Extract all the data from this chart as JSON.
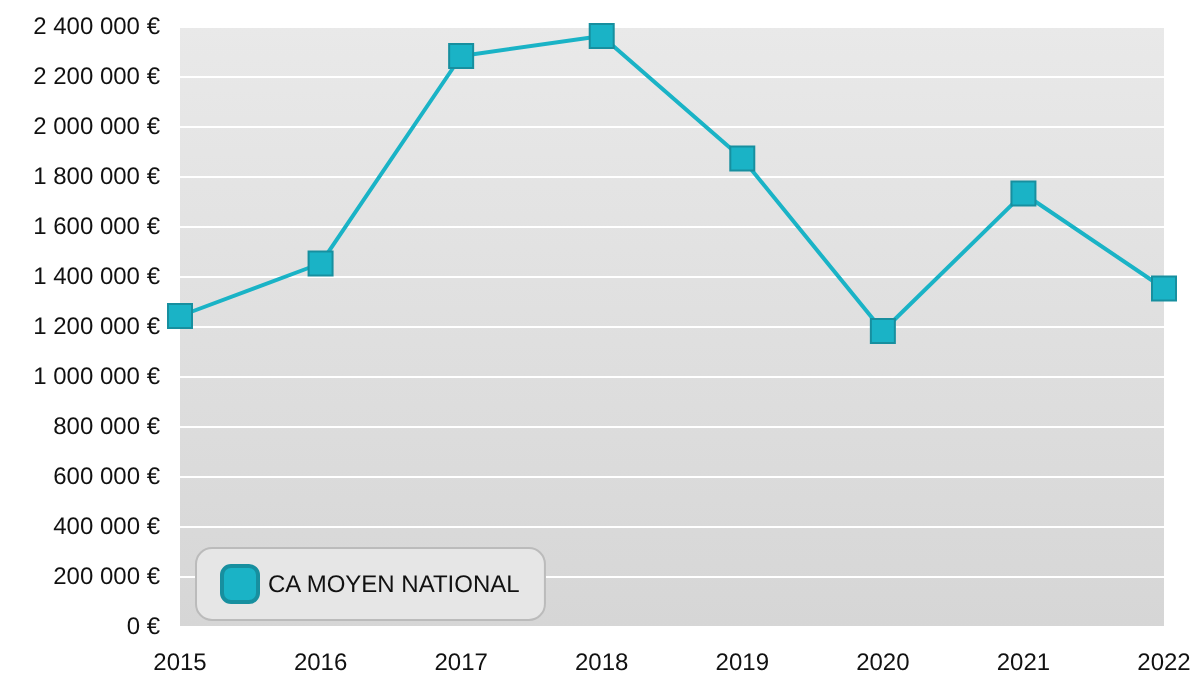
{
  "chart_data": {
    "type": "line",
    "categories": [
      "2015",
      "2016",
      "2017",
      "2018",
      "2019",
      "2020",
      "2021",
      "2022"
    ],
    "series": [
      {
        "name": "CA MOYEN NATIONAL",
        "color": "#1ab3c6",
        "values": [
          1240000,
          1450000,
          2280000,
          2360000,
          1870000,
          1180000,
          1730000,
          1350000
        ]
      }
    ],
    "ylim": [
      0,
      2400000
    ],
    "yticks": [
      {
        "value": 0,
        "label": "0 €"
      },
      {
        "value": 200000,
        "label": "200 000 €"
      },
      {
        "value": 400000,
        "label": "400 000 €"
      },
      {
        "value": 600000,
        "label": "600 000 €"
      },
      {
        "value": 800000,
        "label": "800 000 €"
      },
      {
        "value": 1000000,
        "label": "1 000 000 €"
      },
      {
        "value": 1200000,
        "label": "1 200 000 €"
      },
      {
        "value": 1400000,
        "label": "1 400 000 €"
      },
      {
        "value": 1600000,
        "label": "1 600 000 €"
      },
      {
        "value": 1800000,
        "label": "1 800 000 €"
      },
      {
        "value": 2000000,
        "label": "2 000 000 €"
      },
      {
        "value": 2200000,
        "label": "2 200 000 €"
      },
      {
        "value": 2400000,
        "label": "2 400 000 €"
      }
    ],
    "grid": "y",
    "legend": "bottom left",
    "marker": "square",
    "line_style": "solid"
  }
}
